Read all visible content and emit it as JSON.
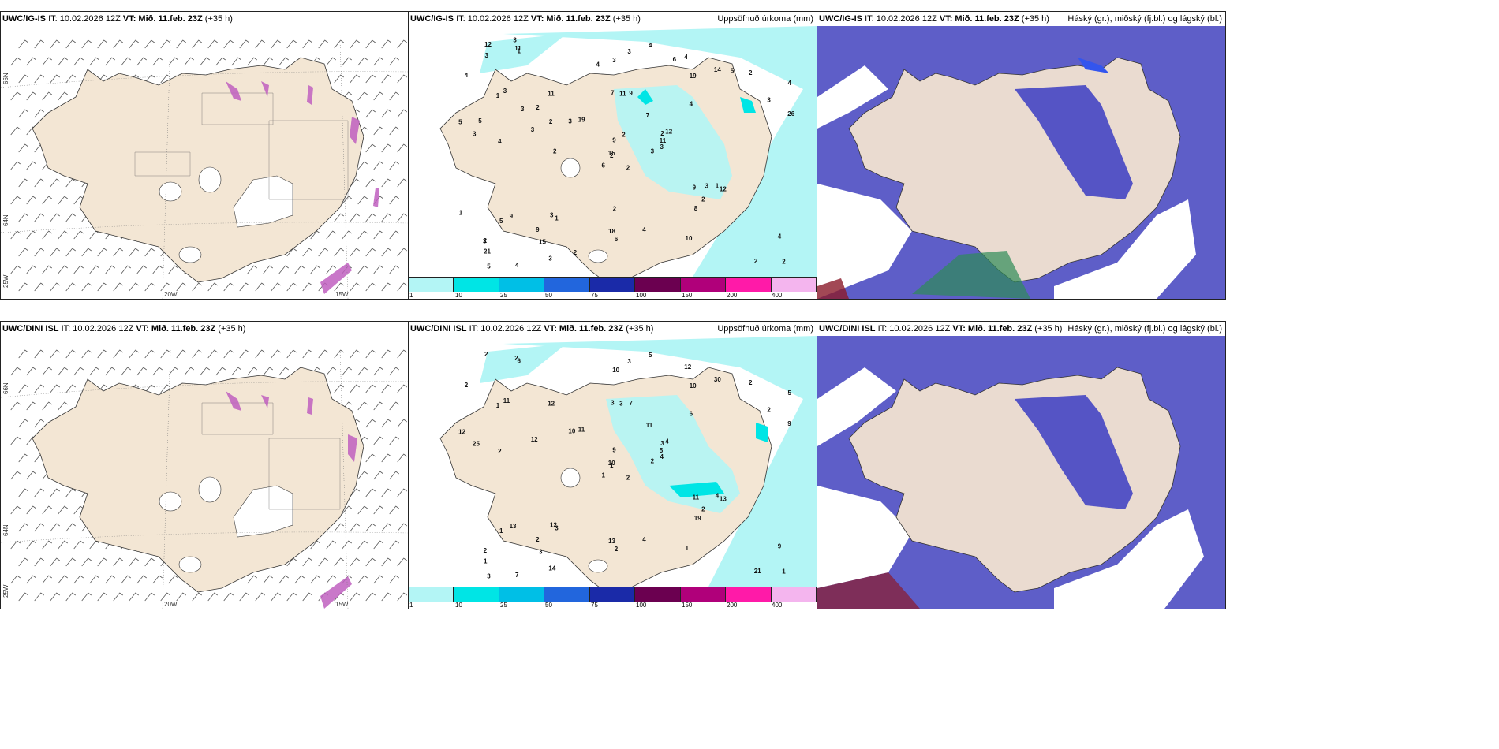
{
  "header_texts": {
    "it_label": "IT: 10.02.2026 12Z",
    "vt_label": "VT: Mið. 11.feb. 23Z",
    "lead": "(+35 h)"
  },
  "panels": {
    "top_wind": {
      "model": "UWC/IG-IS",
      "right_title": ""
    },
    "top_precip": {
      "model": "UWC/IG-IS",
      "right_title": "Uppsöfnuð úrkoma (mm)"
    },
    "top_cloud": {
      "model": "UWC/IG-IS",
      "right_title": "Háský (gr.), miðský (fj.bl.) og lágský (bl.)"
    },
    "bot_wind": {
      "model": "UWC/DINI ISL",
      "right_title": ""
    },
    "bot_precip": {
      "model": "UWC/DINI ISL",
      "right_title": "Uppsöfnuð úrkoma (mm)"
    },
    "bot_cloud": {
      "model": "UWC/DINI ISL",
      "right_title": "Háský (gr.), miðský (fj.bl.) og lágský (bl.)"
    }
  },
  "grid_labels": {
    "lat_66": "66N",
    "lat_64": "64N",
    "lon_25": "25W",
    "lon_20": "20W",
    "lon_15": "15W"
  },
  "legend": {
    "colors": [
      "#b3f5f5",
      "#00e5e5",
      "#00bfe6",
      "#2266dd",
      "#1a2aa8",
      "#6b0050",
      "#b0007a",
      "#ff1aa8",
      "#f4b5ee"
    ],
    "ticks": [
      "1",
      "10",
      "25",
      "50",
      "75",
      "100",
      "150",
      "200",
      "400"
    ]
  },
  "map_colors": {
    "land": "#f5e6d6",
    "precip_light": "#b3f5f5",
    "cloud_low": "#6666cc",
    "cloud_mid": "#3355ee",
    "wind_barb": "#444444"
  },
  "precip_labels_top": [
    "2",
    "1",
    "2",
    "2",
    "2",
    "1",
    "4",
    "9",
    "19",
    "3",
    "1",
    "2",
    "4",
    "4",
    "6",
    "4",
    "4",
    "7",
    "7",
    "9",
    "19",
    "21",
    "15",
    "11",
    "12",
    "12",
    "3",
    "3",
    "3",
    "9",
    "26",
    "15",
    "18",
    "9",
    "11",
    "14",
    "3",
    "2",
    "4",
    "1",
    "4",
    "3",
    "3",
    "8",
    "3",
    "5",
    "11",
    "5",
    "6",
    "3",
    "5",
    "3",
    "4",
    "2",
    "10",
    "9",
    "11",
    "12",
    "4",
    "2",
    "3",
    "2",
    "5",
    "2",
    "5",
    "3",
    "6",
    "4",
    "2",
    "1",
    "2",
    "2",
    "3",
    "2",
    "3",
    "3",
    "3"
  ],
  "precip_labels_bot": [
    "2",
    "1",
    "1",
    "2",
    "3",
    "3",
    "12",
    "7",
    "10",
    "2",
    "6",
    "1",
    "2",
    "5",
    "1",
    "6",
    "7",
    "3",
    "11",
    "13",
    "11",
    "1",
    "3",
    "3",
    "4",
    "13",
    "11",
    "10",
    "25",
    "11",
    "9",
    "10",
    "13",
    "9",
    "12",
    "30",
    "12",
    "21",
    "9",
    "4",
    "5",
    "10",
    "12",
    "19",
    "14",
    "12",
    "5",
    "3",
    "2",
    "4",
    "1",
    "2",
    "2",
    "2",
    "1",
    "2",
    "2",
    "2",
    "4",
    "2",
    "3"
  ]
}
